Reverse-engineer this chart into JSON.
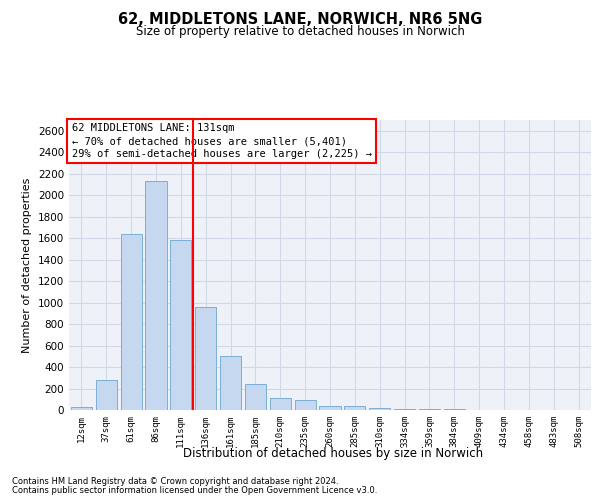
{
  "title": "62, MIDDLETONS LANE, NORWICH, NR6 5NG",
  "subtitle": "Size of property relative to detached houses in Norwich",
  "xlabel": "Distribution of detached houses by size in Norwich",
  "ylabel": "Number of detached properties",
  "categories": [
    "12sqm",
    "37sqm",
    "61sqm",
    "86sqm",
    "111sqm",
    "136sqm",
    "161sqm",
    "185sqm",
    "210sqm",
    "235sqm",
    "260sqm",
    "285sqm",
    "310sqm",
    "334sqm",
    "359sqm",
    "384sqm",
    "409sqm",
    "434sqm",
    "458sqm",
    "483sqm",
    "508sqm"
  ],
  "values": [
    25,
    280,
    1640,
    2130,
    1580,
    960,
    500,
    245,
    115,
    90,
    40,
    35,
    22,
    12,
    8,
    5,
    3,
    2,
    1,
    1,
    0
  ],
  "bar_color": "#c5d8f0",
  "bar_edge_color": "#7bafd4",
  "grid_color": "#d0d8e8",
  "background_color": "#eef2f8",
  "annotation_line1": "62 MIDDLETONS LANE: 131sqm",
  "annotation_line2": "← 70% of detached houses are smaller (5,401)",
  "annotation_line3": "29% of semi-detached houses are larger (2,225) →",
  "vline_x_index": 4.5,
  "vline_color": "red",
  "ylim": [
    0,
    2700
  ],
  "yticks": [
    0,
    200,
    400,
    600,
    800,
    1000,
    1200,
    1400,
    1600,
    1800,
    2000,
    2200,
    2400,
    2600
  ],
  "footnote1": "Contains HM Land Registry data © Crown copyright and database right 2024.",
  "footnote2": "Contains public sector information licensed under the Open Government Licence v3.0."
}
